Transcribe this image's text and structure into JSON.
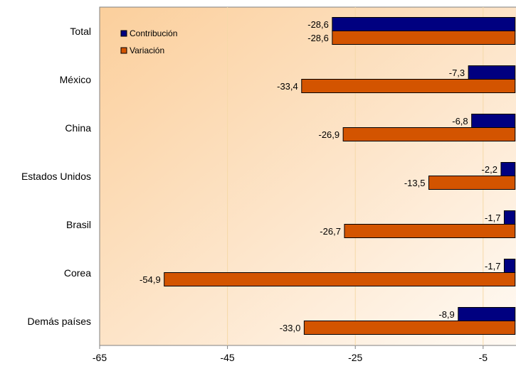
{
  "chart_data": {
    "type": "bar",
    "orientation": "horizontal",
    "categories": [
      "Total",
      "México",
      "China",
      "Estados Unidos",
      "Brasil",
      "Corea",
      "Demás países"
    ],
    "series": [
      {
        "name": "Contribución",
        "color": "#000080",
        "values": [
          -28.6,
          -7.3,
          -6.8,
          -2.2,
          -1.7,
          -1.7,
          -8.9
        ],
        "labels": [
          "-28,6",
          "-7,3",
          "-6,8",
          "-2,2",
          "-1,7",
          "-1,7",
          "-8,9"
        ]
      },
      {
        "name": "Variación",
        "color": "#d35400",
        "values": [
          -28.6,
          -33.4,
          -26.9,
          -13.5,
          -26.7,
          -54.9,
          -33.0
        ],
        "labels": [
          "-28,6",
          "-33,4",
          "-26,9",
          "-13,5",
          "-26,7",
          "-54,9",
          "-33,0"
        ]
      }
    ],
    "x_ticks": [
      "-65",
      "-45",
      "-25",
      "-5"
    ],
    "x_tick_values": [
      -65,
      -45,
      -25,
      -5
    ],
    "xlim": [
      -65,
      0.7
    ],
    "xlabel": "",
    "ylabel": "",
    "title": "",
    "grid": "vertical",
    "legend_position": "top-left",
    "background": "gradient peach"
  }
}
